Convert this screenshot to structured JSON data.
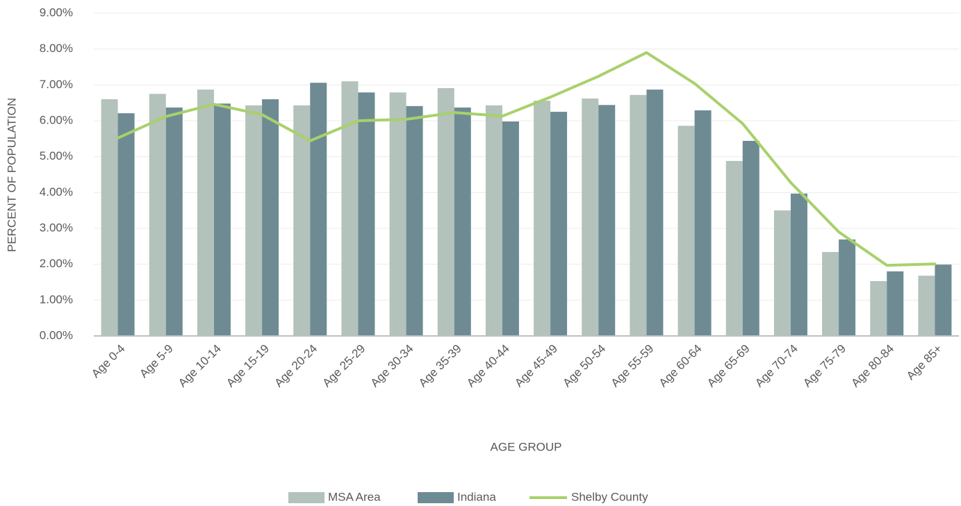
{
  "chart_data": {
    "type": "bar",
    "x_label": "AGE GROUP",
    "y_label": "PERCENT OF POPULATION",
    "categories": [
      "Age 0-4",
      "Age 5-9",
      "Age 10-14",
      "Age 15-19",
      "Age 20-24",
      "Age 25-29",
      "Age 30-34",
      "Age 35-39",
      "Age 40-44",
      "Age 45-49",
      "Age 50-54",
      "Age 55-59",
      "Age 60-64",
      "Age 65-69",
      "Age 70-74",
      "Age 75-79",
      "Age 80-84",
      "Age 85+"
    ],
    "series": [
      {
        "name": "MSA Area",
        "type": "bar",
        "color": "#b3c2bb",
        "values": [
          6.6,
          6.75,
          6.87,
          6.43,
          6.43,
          7.1,
          6.79,
          6.91,
          6.43,
          6.56,
          6.62,
          6.72,
          5.86,
          4.88,
          3.5,
          2.34,
          1.53,
          1.68
        ]
      },
      {
        "name": "Indiana",
        "type": "bar",
        "color": "#6e8b94",
        "values": [
          6.21,
          6.37,
          6.48,
          6.6,
          7.06,
          6.79,
          6.41,
          6.37,
          5.98,
          6.25,
          6.44,
          6.87,
          6.29,
          5.44,
          3.97,
          2.69,
          1.8,
          1.99
        ]
      },
      {
        "name": "Shelby County",
        "type": "line",
        "color": "#a8d16b",
        "values": [
          5.52,
          6.12,
          6.46,
          6.17,
          5.44,
          6.0,
          6.04,
          6.23,
          6.13,
          6.66,
          7.24,
          7.9,
          7.04,
          5.92,
          4.28,
          2.9,
          1.97,
          2.01
        ]
      }
    ],
    "ylim": [
      0,
      9
    ],
    "yticks": [
      {
        "value": 0,
        "label": "0.00%"
      },
      {
        "value": 1,
        "label": "1.00%"
      },
      {
        "value": 2,
        "label": "2.00%"
      },
      {
        "value": 3,
        "label": "3.00%"
      },
      {
        "value": 4,
        "label": "4.00%"
      },
      {
        "value": 5,
        "label": "5.00%"
      },
      {
        "value": 6,
        "label": "6.00%"
      },
      {
        "value": 7,
        "label": "7.00%"
      },
      {
        "value": 8,
        "label": "8.00%"
      },
      {
        "value": 9,
        "label": "9.00%"
      }
    ],
    "grid": true,
    "legend": "bottom"
  }
}
